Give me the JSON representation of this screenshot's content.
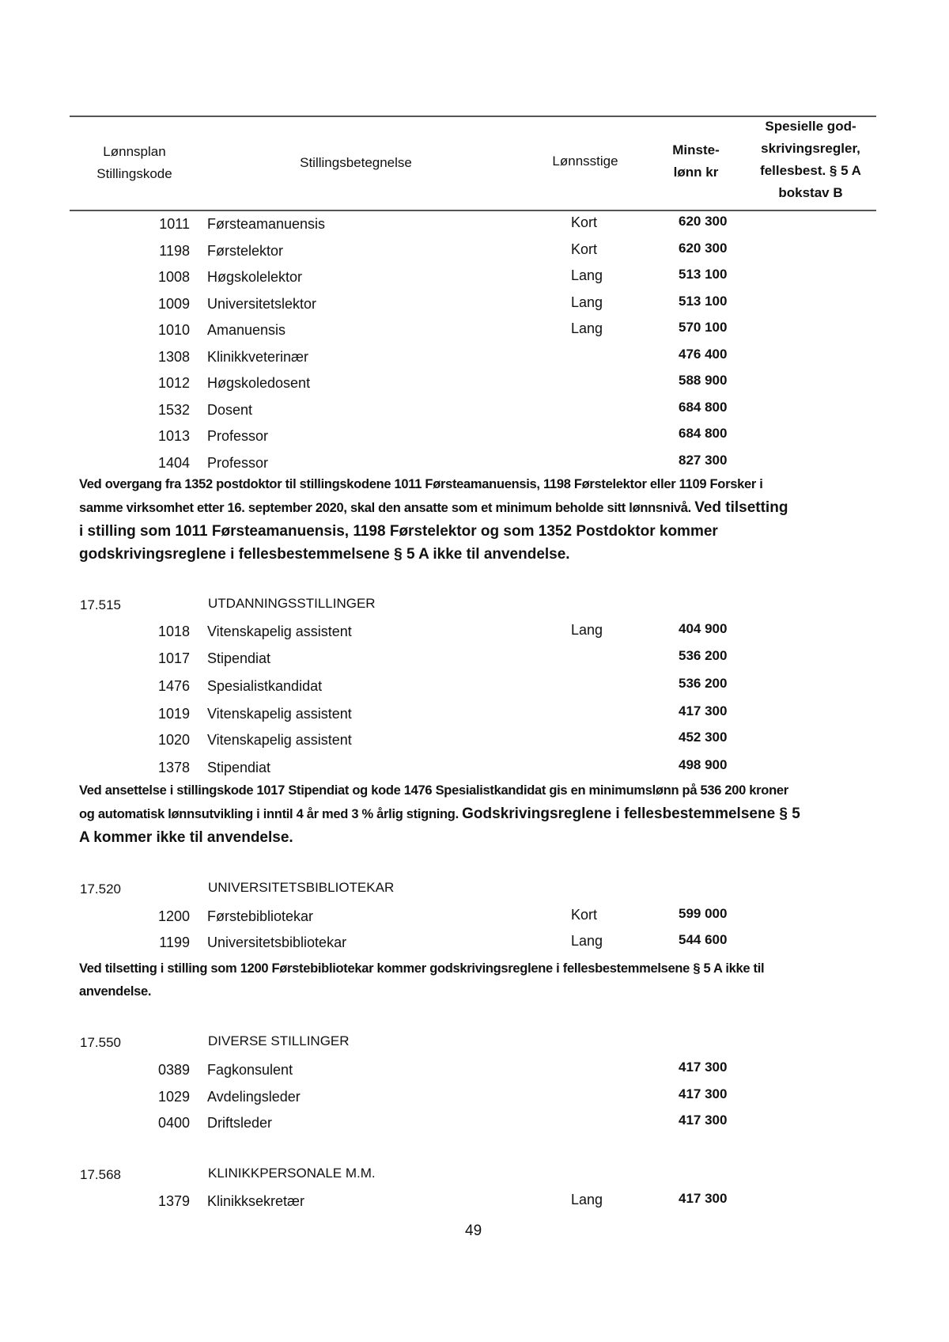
{
  "header": {
    "col_code": [
      "Lønnsplan",
      "Stillingskode"
    ],
    "col_title": "Stillingsbetegnelse",
    "col_ladder": "Lønnsstige",
    "col_min": [
      "Minste-",
      "lønn kr"
    ],
    "col_rules": [
      "Spesielle god-",
      "skrivingsregler,",
      "fellesbest. § 5 A",
      "bokstav B"
    ]
  },
  "main_rows": [
    {
      "code": "1011",
      "title": "Førsteamanuensis",
      "ladder": "Kort",
      "min": "620 300"
    },
    {
      "code": "1198",
      "title": "Førstelektor",
      "ladder": "Kort",
      "min": "620 300"
    },
    {
      "code": "1008",
      "title": "Høgskolelektor",
      "ladder": "Lang",
      "min": "513 100"
    },
    {
      "code": "1009",
      "title": "Universitetslektor",
      "ladder": "Lang",
      "min": "513 100"
    },
    {
      "code": "1010",
      "title": "Amanuensis",
      "ladder": "Lang",
      "min": "570 100"
    },
    {
      "code": "1308",
      "title": "Klinikkveterinær",
      "ladder": "",
      "min": "476 400"
    },
    {
      "code": "1012",
      "title": "Høgskoledosent",
      "ladder": "",
      "min": "588 900"
    },
    {
      "code": "1532",
      "title": "Dosent",
      "ladder": "",
      "min": "684 800"
    },
    {
      "code": "1013",
      "title": "Professor",
      "ladder": "",
      "min": "684 800"
    },
    {
      "code": "1404",
      "title": "Professor",
      "ladder": "",
      "min": "827 300"
    }
  ],
  "note1": {
    "l1": "Ved overgang fra 1352 postdoktor til stillingskodene 1011 Førsteamanuensis, 1198 Førstelektor eller 1109 Forsker i",
    "l2a": "samme virksomhet etter 16. september 2020, skal den ansatte som et minimum beholde sitt lønnsnivå. ",
    "l2b": "Ved tilsetting",
    "l3": "i stilling som 1011 Førsteamanuensis, 1198 Førstelektor og som 1352 Postdoktor kommer",
    "l4": "godskrivingsreglene i fellesbestemmelsene § 5 A ikke til anvendelse."
  },
  "sections": [
    {
      "number": "17.515",
      "name": "UTDANNINGSSTILLINGER",
      "rows": [
        {
          "code": "1018",
          "title": "Vitenskapelig assistent",
          "ladder": "Lang",
          "min": "404 900"
        },
        {
          "code": "1017",
          "title": "Stipendiat",
          "ladder": "",
          "min": "536 200"
        },
        {
          "code": "1476",
          "title": "Spesialistkandidat",
          "ladder": "",
          "min": "536 200"
        },
        {
          "code": "1019",
          "title": "Vitenskapelig assistent",
          "ladder": "",
          "min": "417 300"
        },
        {
          "code": "1020",
          "title": "Vitenskapelig assistent",
          "ladder": "",
          "min": "452 300"
        },
        {
          "code": "1378",
          "title": "Stipendiat",
          "ladder": "",
          "min": "498 900"
        }
      ]
    },
    {
      "number": "17.520",
      "name": "UNIVERSITETSBIBLIOTEKAR",
      "rows": [
        {
          "code": "1200",
          "title": "Førstebibliotekar",
          "ladder": "Kort",
          "min": "599 000"
        },
        {
          "code": "1199",
          "title": "Universitetsbibliotekar",
          "ladder": "Lang",
          "min": "544 600"
        }
      ]
    },
    {
      "number": "17.550",
      "name": "DIVERSE STILLINGER",
      "rows": [
        {
          "code": "0389",
          "title": "Fagkonsulent",
          "ladder": "",
          "min": "417 300"
        },
        {
          "code": "1029",
          "title": "Avdelingsleder",
          "ladder": "",
          "min": "417 300"
        },
        {
          "code": "0400",
          "title": "Driftsleder",
          "ladder": "",
          "min": "417 300"
        }
      ]
    },
    {
      "number": "17.568",
      "name": "KLINIKKPERSONALE M.M.",
      "rows": [
        {
          "code": "1379",
          "title": "Klinikksekretær",
          "ladder": "Lang",
          "min": "417 300"
        }
      ]
    }
  ],
  "note2": {
    "l1": "Ved ansettelse i stillingskode 1017 Stipendiat og kode 1476 Spesialistkandidat gis en minimumslønn på 536 200 kroner",
    "l2a": "og automatisk lønnsutvikling i inntil 4 år med 3 % årlig stigning. ",
    "l2b": "Godskrivingsreglene i fellesbestemmelsene § 5",
    "l3": "A kommer ikke til anvendelse."
  },
  "note3": {
    "l1": "Ved tilsetting i stilling som 1200 Førstebibliotekar kommer godskrivingsreglene i fellesbestemmelsene § 5 A ikke til",
    "l2": "anvendelse."
  },
  "page_number": "49"
}
